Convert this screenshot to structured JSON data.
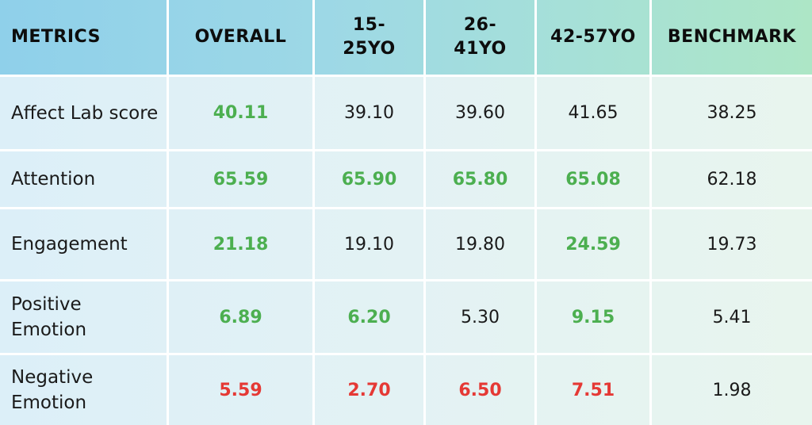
{
  "colors": {
    "positive": "#4caf50",
    "negative": "#e53935",
    "neutral": "#1a1a1a",
    "header_gradient": [
      "#8fd0ea",
      "#ade6c6"
    ],
    "body_gradient": [
      "#dceff8",
      "#e8f5ee"
    ]
  },
  "table": {
    "headers": [
      "METRICS",
      "OVERALL",
      "15-\n25YO",
      "26-\n41YO",
      "42-57YO",
      "BENCHMARK"
    ],
    "rows": [
      {
        "metric": "Affect Lab score",
        "cells": [
          {
            "value": "40.11",
            "status": "positive"
          },
          {
            "value": "39.10",
            "status": "neutral"
          },
          {
            "value": "39.60",
            "status": "neutral"
          },
          {
            "value": "41.65",
            "status": "neutral"
          },
          {
            "value": "38.25",
            "status": "neutral"
          }
        ]
      },
      {
        "metric": "Attention",
        "cells": [
          {
            "value": "65.59",
            "status": "positive"
          },
          {
            "value": "65.90",
            "status": "positive"
          },
          {
            "value": "65.80",
            "status": "positive"
          },
          {
            "value": "65.08",
            "status": "positive"
          },
          {
            "value": "62.18",
            "status": "neutral"
          }
        ]
      },
      {
        "metric": "Engagement",
        "cells": [
          {
            "value": "21.18",
            "status": "positive"
          },
          {
            "value": "19.10",
            "status": "neutral"
          },
          {
            "value": "19.80",
            "status": "neutral"
          },
          {
            "value": "24.59",
            "status": "positive"
          },
          {
            "value": "19.73",
            "status": "neutral"
          }
        ]
      },
      {
        "metric": "Positive Emotion",
        "cells": [
          {
            "value": "6.89",
            "status": "positive"
          },
          {
            "value": "6.20",
            "status": "positive"
          },
          {
            "value": "5.30",
            "status": "neutral"
          },
          {
            "value": "9.15",
            "status": "positive"
          },
          {
            "value": "5.41",
            "status": "neutral"
          }
        ]
      },
      {
        "metric": "Negative Emotion",
        "cells": [
          {
            "value": "5.59",
            "status": "negative"
          },
          {
            "value": "2.70",
            "status": "negative"
          },
          {
            "value": "6.50",
            "status": "negative"
          },
          {
            "value": "7.51",
            "status": "negative"
          },
          {
            "value": "1.98",
            "status": "neutral"
          }
        ]
      }
    ]
  }
}
